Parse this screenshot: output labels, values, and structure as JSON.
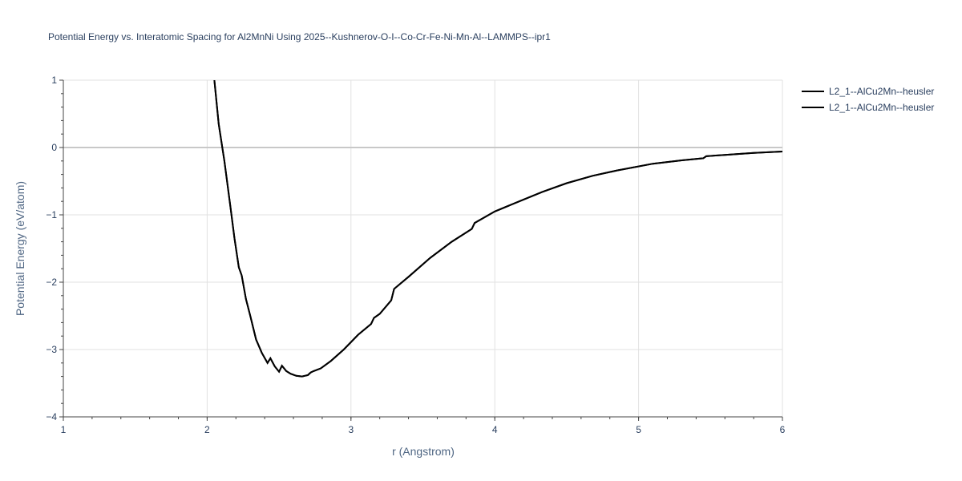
{
  "chart_data": {
    "type": "line",
    "title": "Potential Energy vs. Interatomic Spacing for Al2MnNi Using 2025--Kushnerov-O-I--Co-Cr-Fe-Ni-Mn-Al--LAMMPS--ipr1",
    "xlabel": "r (Angstrom)",
    "ylabel": "Potential Energy (eV/atom)",
    "xlim": [
      1,
      6
    ],
    "ylim": [
      -4,
      1
    ],
    "x_ticks": [
      1,
      2,
      3,
      4,
      5,
      6
    ],
    "y_ticks": [
      1,
      0,
      -1,
      -2,
      -3,
      -4
    ],
    "x_tick_labels": [
      "1",
      "2",
      "3",
      "4",
      "5",
      "6"
    ],
    "y_tick_labels": [
      "1",
      "0",
      "−1",
      "−2",
      "−3",
      "−4"
    ],
    "grid": true,
    "legend_position": "top-right",
    "series_color": "#000000",
    "series": [
      {
        "name": "L2_1--AlCu2Mn--heusler",
        "x": [
          2.05,
          2.08,
          2.12,
          2.16,
          2.19,
          2.22,
          2.24,
          2.27,
          2.3,
          2.34,
          2.38,
          2.42,
          2.44,
          2.47,
          2.5,
          2.52,
          2.55,
          2.58,
          2.62,
          2.66,
          2.7,
          2.72,
          2.74,
          2.79,
          2.86,
          2.95,
          3.05,
          3.14,
          3.16,
          3.2,
          3.28,
          3.3,
          3.4,
          3.55,
          3.7,
          3.84,
          3.86,
          4.0,
          4.18,
          4.33,
          4.5,
          4.68,
          4.85,
          5.1,
          5.3,
          5.45,
          5.47,
          5.6,
          5.8,
          6.0
        ],
        "y": [
          1.0,
          0.35,
          -0.2,
          -0.85,
          -1.35,
          -1.78,
          -1.9,
          -2.25,
          -2.5,
          -2.85,
          -3.05,
          -3.2,
          -3.13,
          -3.25,
          -3.33,
          -3.24,
          -3.32,
          -3.36,
          -3.39,
          -3.4,
          -3.38,
          -3.34,
          -3.32,
          -3.28,
          -3.17,
          -3.0,
          -2.78,
          -2.62,
          -2.53,
          -2.47,
          -2.27,
          -2.1,
          -1.92,
          -1.64,
          -1.4,
          -1.21,
          -1.12,
          -0.95,
          -0.79,
          -0.66,
          -0.53,
          -0.42,
          -0.34,
          -0.24,
          -0.19,
          -0.16,
          -0.13,
          -0.11,
          -0.08,
          -0.06
        ]
      },
      {
        "name": "L2_1--AlCu2Mn--heusler",
        "x": [
          2.05,
          2.08,
          2.12,
          2.16,
          2.19,
          2.22,
          2.24,
          2.27,
          2.3,
          2.34,
          2.38,
          2.42,
          2.44,
          2.47,
          2.5,
          2.52,
          2.55,
          2.58,
          2.62,
          2.66,
          2.7,
          2.72,
          2.74,
          2.79,
          2.86,
          2.95,
          3.05,
          3.14,
          3.16,
          3.2,
          3.28,
          3.3,
          3.4,
          3.55,
          3.7,
          3.84,
          3.86,
          4.0,
          4.18,
          4.33,
          4.5,
          4.68,
          4.85,
          5.1,
          5.3,
          5.45,
          5.47,
          5.6,
          5.8,
          6.0
        ],
        "y": [
          1.0,
          0.35,
          -0.2,
          -0.85,
          -1.35,
          -1.78,
          -1.9,
          -2.25,
          -2.5,
          -2.85,
          -3.05,
          -3.2,
          -3.13,
          -3.25,
          -3.33,
          -3.24,
          -3.32,
          -3.36,
          -3.39,
          -3.4,
          -3.38,
          -3.34,
          -3.32,
          -3.28,
          -3.17,
          -3.0,
          -2.78,
          -2.62,
          -2.53,
          -2.47,
          -2.27,
          -2.1,
          -1.92,
          -1.64,
          -1.4,
          -1.21,
          -1.12,
          -0.95,
          -0.79,
          -0.66,
          -0.53,
          -0.42,
          -0.34,
          -0.24,
          -0.19,
          -0.16,
          -0.13,
          -0.11,
          -0.08,
          -0.06
        ]
      }
    ]
  }
}
